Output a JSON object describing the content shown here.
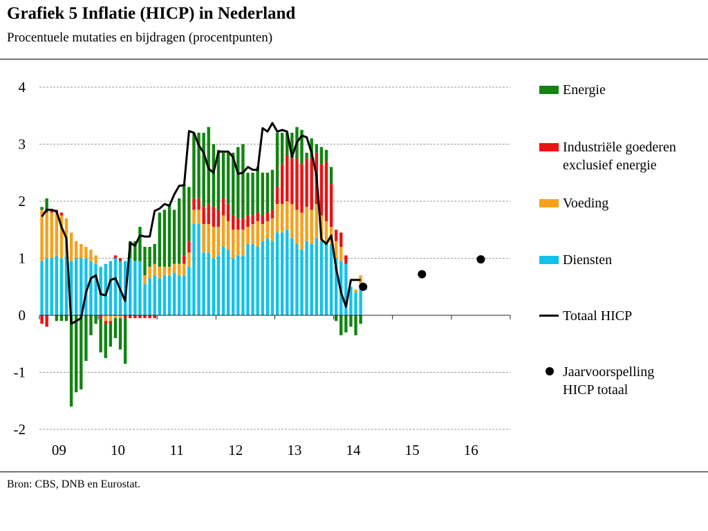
{
  "title": "Grafiek 5 Inflatie (HICP) in Nederland",
  "subtitle": "Procentuele mutaties en bijdragen (procentpunten)",
  "source": "Bron: CBS, DNB en Eurostat.",
  "legend": [
    {
      "key": "energie",
      "label": [
        "Energie"
      ],
      "color": "#118411",
      "kind": "bar"
    },
    {
      "key": "industrie",
      "label": [
        "Industriële goederen",
        "exclusief energie"
      ],
      "color": "#ee1111",
      "kind": "bar"
    },
    {
      "key": "voeding",
      "label": [
        "Voeding"
      ],
      "color": "#f7a11a",
      "kind": "bar"
    },
    {
      "key": "diensten",
      "label": [
        "Diensten"
      ],
      "color": "#12c2ea",
      "kind": "bar"
    },
    {
      "key": "totaal",
      "label": [
        "Totaal HICP"
      ],
      "color": "#000000",
      "kind": "line"
    },
    {
      "key": "voorspelling",
      "label": [
        "Jaarvoorspelling",
        "HICP totaal"
      ],
      "color": "#000000",
      "kind": "dot"
    }
  ],
  "chart_data": {
    "type": "bar",
    "stacked": true,
    "title": "Grafiek 5 Inflatie (HICP) in Nederland",
    "subtitle": "Procentuele mutaties en bijdragen (procentpunten)",
    "ylim": [
      -2,
      4
    ],
    "yticks": [
      4,
      3,
      2,
      1,
      0,
      -1,
      -2
    ],
    "xticks": [
      "09",
      "10",
      "11",
      "12",
      "13",
      "14",
      "15",
      "16"
    ],
    "x_range": [
      "2009-01",
      "2016-12"
    ],
    "grid": true,
    "legend_position": "right",
    "x": [
      "2009-01",
      "2009-02",
      "2009-03",
      "2009-04",
      "2009-05",
      "2009-06",
      "2009-07",
      "2009-08",
      "2009-09",
      "2009-10",
      "2009-11",
      "2009-12",
      "2010-01",
      "2010-02",
      "2010-03",
      "2010-04",
      "2010-05",
      "2010-06",
      "2010-07",
      "2010-08",
      "2010-09",
      "2010-10",
      "2010-11",
      "2010-12",
      "2011-01",
      "2011-02",
      "2011-03",
      "2011-04",
      "2011-05",
      "2011-06",
      "2011-07",
      "2011-08",
      "2011-09",
      "2011-10",
      "2011-11",
      "2011-12",
      "2012-01",
      "2012-02",
      "2012-03",
      "2012-04",
      "2012-05",
      "2012-06",
      "2012-07",
      "2012-08",
      "2012-09",
      "2012-10",
      "2012-11",
      "2012-12",
      "2013-01",
      "2013-02",
      "2013-03",
      "2013-04",
      "2013-05",
      "2013-06",
      "2013-07",
      "2013-08",
      "2013-09",
      "2013-10",
      "2013-11",
      "2013-12",
      "2014-01",
      "2014-02",
      "2014-03",
      "2014-04",
      "2014-05",
      "2014-06"
    ],
    "series": [
      {
        "name": "Diensten",
        "color": "#12c2ea",
        "values": [
          0.95,
          1.0,
          1.0,
          1.05,
          1.0,
          1.05,
          0.95,
          1.0,
          1.0,
          1.0,
          0.95,
          0.9,
          0.85,
          0.9,
          0.95,
          1.0,
          0.95,
          0.95,
          1.0,
          0.95,
          0.95,
          0.55,
          0.65,
          0.7,
          0.65,
          0.7,
          0.7,
          0.75,
          0.7,
          0.7,
          0.85,
          1.6,
          1.6,
          1.1,
          1.1,
          1.0,
          1.05,
          1.2,
          1.15,
          1.0,
          1.05,
          1.05,
          1.25,
          1.25,
          1.2,
          1.3,
          1.35,
          1.3,
          1.45,
          1.45,
          1.5,
          1.35,
          1.25,
          1.15,
          1.3,
          1.25,
          1.35,
          1.3,
          1.3,
          1.25,
          1.0,
          0.95,
          0.9,
          0.5,
          0.4,
          0.45
        ]
      },
      {
        "name": "Voeding",
        "color": "#f7a11a",
        "values": [
          0.9,
          0.8,
          0.8,
          0.75,
          0.75,
          0.65,
          0.5,
          0.3,
          0.25,
          0.2,
          0.2,
          0.15,
          0.0,
          -0.1,
          -0.1,
          -0.05,
          -0.05,
          0.0,
          0.0,
          0.0,
          0.0,
          0.15,
          0.2,
          0.2,
          0.2,
          0.15,
          0.15,
          0.15,
          0.2,
          0.2,
          0.25,
          0.25,
          0.25,
          0.5,
          0.5,
          0.55,
          0.5,
          0.55,
          0.5,
          0.5,
          0.45,
          0.45,
          0.3,
          0.35,
          0.45,
          0.3,
          0.3,
          0.4,
          0.5,
          0.5,
          0.5,
          0.6,
          0.6,
          0.65,
          0.6,
          0.6,
          0.6,
          0.45,
          0.35,
          0.3,
          0.3,
          0.25,
          0.0,
          0.0,
          0.05,
          0.25
        ]
      },
      {
        "name": "Industriële goederen exclusief energie",
        "color": "#ee1111",
        "values": [
          -0.15,
          -0.2,
          0.05,
          0.05,
          0.05,
          0.0,
          0.0,
          0.0,
          0.0,
          0.0,
          0.0,
          0.0,
          -0.05,
          -0.05,
          -0.05,
          0.05,
          0.05,
          -0.05,
          -0.05,
          -0.05,
          -0.05,
          -0.05,
          -0.05,
          -0.05,
          0.0,
          0.0,
          0.0,
          0.0,
          0.0,
          0.15,
          0.2,
          0.2,
          0.2,
          0.3,
          0.35,
          0.35,
          0.3,
          0.3,
          0.3,
          0.25,
          0.2,
          0.2,
          0.2,
          0.15,
          0.15,
          0.15,
          0.15,
          0.15,
          0.3,
          0.7,
          0.8,
          0.8,
          0.9,
          0.85,
          0.85,
          0.9,
          0.9,
          0.9,
          1.05,
          0.75,
          0.2,
          0.25,
          0.15,
          0.0,
          0.0,
          0.0
        ]
      },
      {
        "name": "Energie",
        "color": "#118411",
        "values": [
          0.05,
          0.25,
          0.0,
          -0.1,
          -0.1,
          -0.1,
          -1.6,
          -1.35,
          -1.3,
          -0.8,
          -0.35,
          -0.15,
          -0.6,
          -0.6,
          -0.4,
          -0.35,
          -0.55,
          -0.8,
          0.3,
          0.35,
          0.6,
          0.5,
          0.35,
          0.35,
          0.95,
          1.0,
          1.1,
          0.95,
          1.15,
          1.25,
          0.95,
          1.15,
          1.15,
          1.3,
          1.35,
          1.1,
          1.05,
          0.8,
          0.9,
          1.1,
          1.25,
          1.3,
          0.75,
          0.75,
          0.8,
          0.75,
          0.7,
          0.7,
          0.95,
          0.55,
          0.4,
          0.45,
          0.55,
          0.6,
          0.1,
          0.35,
          0.15,
          0.3,
          0.2,
          0.3,
          -0.1,
          -0.35,
          -0.3,
          -0.2,
          -0.35,
          -0.15
        ]
      },
      {
        "name": "Totaal HICP",
        "color": "#000000",
        "kind": "line",
        "values": [
          1.73,
          1.85,
          1.85,
          1.82,
          1.55,
          1.35,
          -0.15,
          -0.1,
          -0.05,
          0.4,
          0.65,
          0.7,
          0.37,
          0.35,
          0.62,
          0.65,
          0.45,
          0.25,
          1.27,
          1.22,
          1.4,
          1.38,
          1.38,
          1.83,
          1.87,
          1.95,
          1.92,
          2.12,
          2.27,
          2.28,
          3.23,
          3.2,
          2.98,
          2.85,
          2.57,
          2.5,
          2.87,
          2.87,
          2.87,
          2.77,
          2.48,
          2.5,
          2.6,
          2.55,
          2.55,
          3.28,
          3.22,
          3.37,
          3.22,
          3.25,
          3.22,
          2.78,
          3.03,
          3.15,
          3.12,
          2.85,
          2.45,
          1.33,
          1.25,
          1.4,
          0.82,
          0.4,
          0.15,
          0.62,
          0.62,
          0.62
        ]
      }
    ],
    "forecast": {
      "name": "Jaarvoorspelling HICP totaal",
      "x": [
        "2014",
        "2015",
        "2016"
      ],
      "values": [
        0.5,
        0.72,
        0.98
      ]
    }
  }
}
